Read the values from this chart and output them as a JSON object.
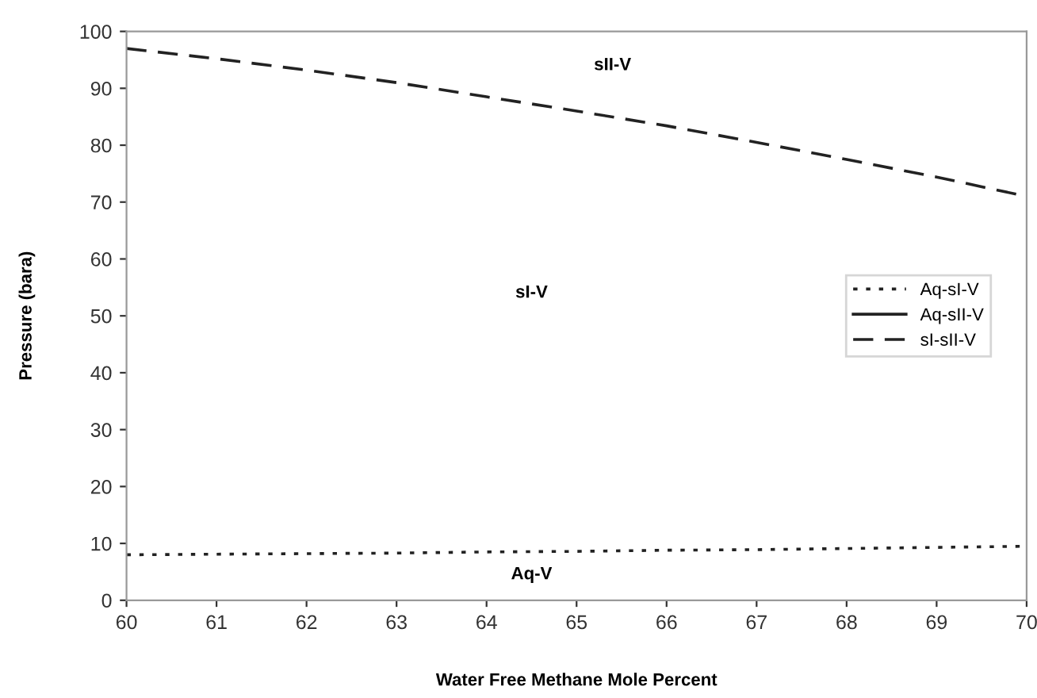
{
  "chart_data": {
    "type": "line",
    "xlabel": "Water Free Methane Mole Percent",
    "ylabel": "Pressure (bara)",
    "x": [
      60,
      61,
      62,
      63,
      64,
      65,
      66,
      67,
      68,
      69,
      70
    ],
    "series": [
      {
        "name": "Aq-sI-V",
        "color": "#222222",
        "line_style": "dotted",
        "values": [
          8.0,
          8.1,
          8.2,
          8.3,
          8.5,
          8.6,
          8.8,
          8.9,
          9.1,
          9.3,
          9.5
        ]
      },
      {
        "name": "Aq-sII-V",
        "color": "#222222",
        "line_style": "solid",
        "values": [
          null,
          null,
          null,
          null,
          null,
          null,
          null,
          null,
          null,
          null,
          null
        ]
      },
      {
        "name": "sI-sII-V",
        "color": "#222222",
        "line_style": "dashed",
        "values": [
          97,
          95.2,
          93.2,
          91,
          88.5,
          86,
          83.4,
          80.5,
          77.5,
          74.4,
          71
        ]
      }
    ],
    "xlim": [
      60,
      70
    ],
    "xticks": [
      60,
      61,
      62,
      63,
      64,
      65,
      66,
      67,
      68,
      69,
      70
    ],
    "ylim": [
      0,
      100
    ],
    "yticks": [
      0,
      10,
      20,
      30,
      40,
      50,
      60,
      70,
      80,
      90,
      100
    ],
    "grid": false,
    "legend": "right",
    "marker": "none",
    "annotations": [
      "sII-V",
      "sI-V",
      "Aq-V"
    ]
  }
}
